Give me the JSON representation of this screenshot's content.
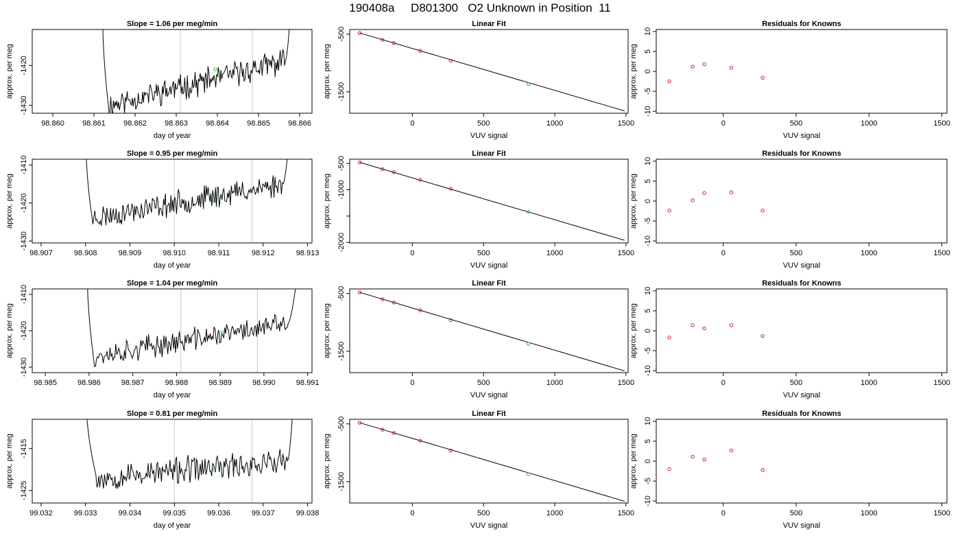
{
  "page": {
    "title": "190408a     D801300   O2 Unknown in Position  11"
  },
  "colors": {
    "line": "#000000",
    "known_points": "#cc2222",
    "unknown_point": "#22cc22",
    "guide_lines": "#c8c8c8"
  },
  "chart_data": [
    {
      "type": "line",
      "row": 1,
      "col": 1,
      "title": "Slope =  1.06  per meg/min",
      "xlabel": "day of year",
      "ylabel": "approx. per meg",
      "xlim": [
        98.8595,
        98.8663
      ],
      "ylim": [
        -1432,
        -1411
      ],
      "xticks": [
        98.86,
        98.861,
        98.862,
        98.863,
        98.864,
        98.865,
        98.866
      ],
      "xtick_labels": [
        "98.860",
        "98.861",
        "98.862",
        "98.863",
        "98.864",
        "98.865",
        "98.866"
      ],
      "yticks": [
        -1430,
        -1420
      ],
      "ytick_labels": [
        "-1430",
        "-1420"
      ],
      "x_start": 98.8612,
      "x_end": 98.8658,
      "segment_start": 98.86135,
      "segment_end": 98.86565,
      "trend_start": -1430,
      "trend_end": -1419,
      "top_value": -1411,
      "guides_x": [
        98.8631,
        98.86485
      ],
      "unknown_point": {
        "x": 98.86395,
        "y": -1421
      },
      "seed": 11
    },
    {
      "type": "scatter",
      "row": 1,
      "col": 2,
      "title": "Linear Fit",
      "xlabel": "VUV signal",
      "ylabel": "approx. per meg",
      "xlim": [
        -440,
        1515
      ],
      "ylim": [
        -1870,
        -420
      ],
      "xticks": [
        0,
        500,
        1000,
        1500
      ],
      "xtick_labels": [
        "0",
        "500",
        "1000",
        "1500"
      ],
      "yticks": [
        -1500,
        -500
      ],
      "ytick_labels": [
        "-1500",
        "-500"
      ],
      "fit_line": {
        "x": [
          -370,
          1490
        ],
        "y": [
          -480,
          -1830
        ]
      },
      "knowns": {
        "x": [
          -370,
          -210,
          -130,
          55,
          270
        ],
        "y": [
          -480,
          -600,
          -655,
          -790,
          -960
        ]
      },
      "unknown_point": {
        "x": 815,
        "y": -1370
      }
    },
    {
      "type": "scatter",
      "row": 1,
      "col": 3,
      "title": "Residuals for Knowns",
      "xlabel": "VUV signal",
      "ylabel": "approx. per meg",
      "xlim": [
        -460,
        1535
      ],
      "ylim": [
        -10.5,
        10.5
      ],
      "xticks": [
        0,
        500,
        1000,
        1500
      ],
      "xtick_labels": [
        "0",
        "500",
        "1000",
        "1500"
      ],
      "yticks": [
        -10,
        -5,
        0,
        5,
        10
      ],
      "ytick_labels": [
        "-10",
        "-5",
        "0",
        "5",
        "10"
      ],
      "knowns": {
        "x": [
          -370,
          -210,
          -130,
          55,
          270
        ],
        "y": [
          -2.5,
          1.2,
          1.8,
          0.9,
          -1.6
        ]
      }
    },
    {
      "type": "line",
      "row": 2,
      "col": 1,
      "title": "Slope =  0.95  per meg/min",
      "xlabel": "day of year",
      "ylabel": "approx. per meg",
      "xlim": [
        98.9068,
        98.9131
      ],
      "ylim": [
        -1430.5,
        -1408.5
      ],
      "xticks": [
        98.907,
        98.908,
        98.909,
        98.91,
        98.911,
        98.912,
        98.913
      ],
      "xtick_labels": [
        "98.907",
        "98.908",
        "98.909",
        "98.910",
        "98.911",
        "98.912",
        "98.913"
      ],
      "yticks": [
        -1430,
        -1420,
        -1410
      ],
      "ytick_labels": [
        "-1430",
        "-1420",
        "-1410"
      ],
      "x_start": 98.908,
      "x_end": 98.9126,
      "segment_start": 98.90815,
      "segment_end": 98.91245,
      "trend_start": -1424,
      "trend_end": -1415,
      "top_value": -1408.5,
      "guides_x": [
        98.91,
        98.91175
      ],
      "unknown_point": {
        "x": 98.9109,
        "y": -1419.5
      },
      "seed": 23
    },
    {
      "type": "scatter",
      "row": 2,
      "col": 2,
      "title": "Linear Fit",
      "xlabel": "VUV signal",
      "ylabel": "approx. per meg",
      "xlim": [
        -440,
        1515
      ],
      "ylim": [
        -2010,
        -420
      ],
      "xticks": [
        0,
        500,
        1000,
        1500
      ],
      "xtick_labels": [
        "0",
        "500",
        "1000",
        "1500"
      ],
      "yticks": [
        -2000,
        -1500,
        -1000,
        -500
      ],
      "ytick_labels": [
        "-2000",
        "",
        "-1000",
        "-500"
      ],
      "fit_line": {
        "x": [
          -370,
          1490
        ],
        "y": [
          -480,
          -1960
        ]
      },
      "knowns": {
        "x": [
          -370,
          -210,
          -130,
          55,
          270
        ],
        "y": [
          -480,
          -610,
          -665,
          -810,
          -980
        ]
      },
      "unknown_point": {
        "x": 815,
        "y": -1420
      }
    },
    {
      "type": "scatter",
      "row": 2,
      "col": 3,
      "title": "Residuals for Knowns",
      "xlabel": "VUV signal",
      "ylabel": "approx. per meg",
      "xlim": [
        -460,
        1535
      ],
      "ylim": [
        -10.5,
        10.5
      ],
      "xticks": [
        0,
        500,
        1000,
        1500
      ],
      "xtick_labels": [
        "0",
        "500",
        "1000",
        "1500"
      ],
      "yticks": [
        -10,
        -5,
        0,
        5,
        10
      ],
      "ytick_labels": [
        "-10",
        "-5",
        "0",
        "5",
        "10"
      ],
      "knowns": {
        "x": [
          -370,
          -210,
          -130,
          55,
          270
        ],
        "y": [
          -2.4,
          0.2,
          2.0,
          2.2,
          -2.4
        ]
      }
    },
    {
      "type": "line",
      "row": 3,
      "col": 1,
      "title": "Slope =  1.04  per meg/min",
      "xlabel": "day of year",
      "ylabel": "approx. per meg",
      "xlim": [
        98.9847,
        98.9911
      ],
      "ylim": [
        -1431.5,
        -1408.5
      ],
      "xticks": [
        98.985,
        98.986,
        98.987,
        98.988,
        98.989,
        98.99,
        98.991
      ],
      "xtick_labels": [
        "98.985",
        "98.986",
        "98.987",
        "98.988",
        "98.989",
        "98.990",
        "98.991"
      ],
      "yticks": [
        -1430,
        -1420,
        -1410
      ],
      "ytick_labels": [
        "-1430",
        "-1420",
        "-1410"
      ],
      "x_start": 98.98595,
      "x_end": 98.9908,
      "segment_start": 98.9861,
      "segment_end": 98.99055,
      "trend_start": -1427,
      "trend_end": -1418,
      "top_value": -1408.5,
      "guides_x": [
        98.9881,
        98.98985
      ],
      "unknown_point": {
        "x": 98.98905,
        "y": -1420.5
      },
      "seed": 37
    },
    {
      "type": "scatter",
      "row": 3,
      "col": 2,
      "title": "Linear Fit",
      "xlabel": "VUV signal",
      "ylabel": "approx. per meg",
      "xlim": [
        -440,
        1515
      ],
      "ylim": [
        -1870,
        -420
      ],
      "xticks": [
        0,
        500,
        1000,
        1500
      ],
      "xtick_labels": [
        "0",
        "500",
        "1000",
        "1500"
      ],
      "yticks": [
        -1500,
        -500
      ],
      "ytick_labels": [
        "-1500",
        "-500"
      ],
      "fit_line": {
        "x": [
          -370,
          1490
        ],
        "y": [
          -480,
          -1840
        ]
      },
      "knowns": {
        "x": [
          -370,
          -210,
          -130,
          55,
          270
        ],
        "y": [
          -480,
          -600,
          -655,
          -790,
          -960
        ]
      },
      "unknown_point": {
        "x": 815,
        "y": -1370
      }
    },
    {
      "type": "scatter",
      "row": 3,
      "col": 3,
      "title": "Residuals for Knowns",
      "xlabel": "VUV signal",
      "ylabel": "approx. per meg",
      "xlim": [
        -460,
        1535
      ],
      "ylim": [
        -10.5,
        10.5
      ],
      "xticks": [
        0,
        500,
        1000,
        1500
      ],
      "xtick_labels": [
        "0",
        "500",
        "1000",
        "1500"
      ],
      "yticks": [
        -10,
        -5,
        0,
        5,
        10
      ],
      "ytick_labels": [
        "-10",
        "-5",
        "0",
        "5",
        "10"
      ],
      "knowns": {
        "x": [
          -370,
          -210,
          -130,
          55,
          270
        ],
        "y": [
          -1.7,
          1.4,
          0.6,
          1.4,
          -1.3
        ]
      }
    },
    {
      "type": "line",
      "row": 4,
      "col": 1,
      "title": "Slope =  0.81  per meg/min",
      "xlabel": "day of year",
      "ylabel": "approx. per meg",
      "xlim": [
        99.0318,
        99.0381
      ],
      "ylim": [
        -1428,
        -1408
      ],
      "xticks": [
        99.032,
        99.033,
        99.034,
        99.035,
        99.036,
        99.037,
        99.038
      ],
      "xtick_labels": [
        "99.032",
        "99.033",
        "99.034",
        "99.035",
        "99.036",
        "99.037",
        "99.038"
      ],
      "yticks": [
        -1425,
        -1415
      ],
      "ytick_labels": [
        "-1425",
        "-1415"
      ],
      "x_start": 99.033,
      "x_end": 99.0377,
      "segment_start": 99.03325,
      "segment_end": 99.03755,
      "trend_start": -1422,
      "trend_end": -1418,
      "top_value": -1408,
      "guides_x": [
        99.035,
        99.03675
      ],
      "unknown_point": {
        "x": 99.0359,
        "y": -1420
      },
      "seed": 53
    },
    {
      "type": "scatter",
      "row": 4,
      "col": 2,
      "title": "Linear Fit",
      "xlabel": "VUV signal",
      "ylabel": "approx. per meg",
      "xlim": [
        -440,
        1515
      ],
      "ylim": [
        -1870,
        -420
      ],
      "xticks": [
        0,
        500,
        1000,
        1500
      ],
      "xtick_labels": [
        "0",
        "500",
        "1000",
        "1500"
      ],
      "yticks": [
        -1500,
        -500
      ],
      "ytick_labels": [
        "-1500",
        "-500"
      ],
      "fit_line": {
        "x": [
          -370,
          1490
        ],
        "y": [
          -480,
          -1840
        ]
      },
      "knowns": {
        "x": [
          -370,
          -210,
          -130,
          55,
          270
        ],
        "y": [
          -480,
          -600,
          -655,
          -790,
          -960
        ]
      },
      "unknown_point": {
        "x": 815,
        "y": -1370
      }
    },
    {
      "type": "scatter",
      "row": 4,
      "col": 3,
      "title": "Residuals for Knowns",
      "xlabel": "VUV signal",
      "ylabel": "approx. per meg",
      "xlim": [
        -460,
        1535
      ],
      "ylim": [
        -10.5,
        10.5
      ],
      "xticks": [
        0,
        500,
        1000,
        1500
      ],
      "xtick_labels": [
        "0",
        "500",
        "1000",
        "1500"
      ],
      "yticks": [
        -10,
        -5,
        0,
        5,
        10
      ],
      "ytick_labels": [
        "-10",
        "-5",
        "0",
        "5",
        "10"
      ],
      "knowns": {
        "x": [
          -370,
          -210,
          -130,
          55,
          270
        ],
        "y": [
          -2.0,
          1.1,
          0.4,
          2.7,
          -2.2
        ]
      }
    }
  ]
}
